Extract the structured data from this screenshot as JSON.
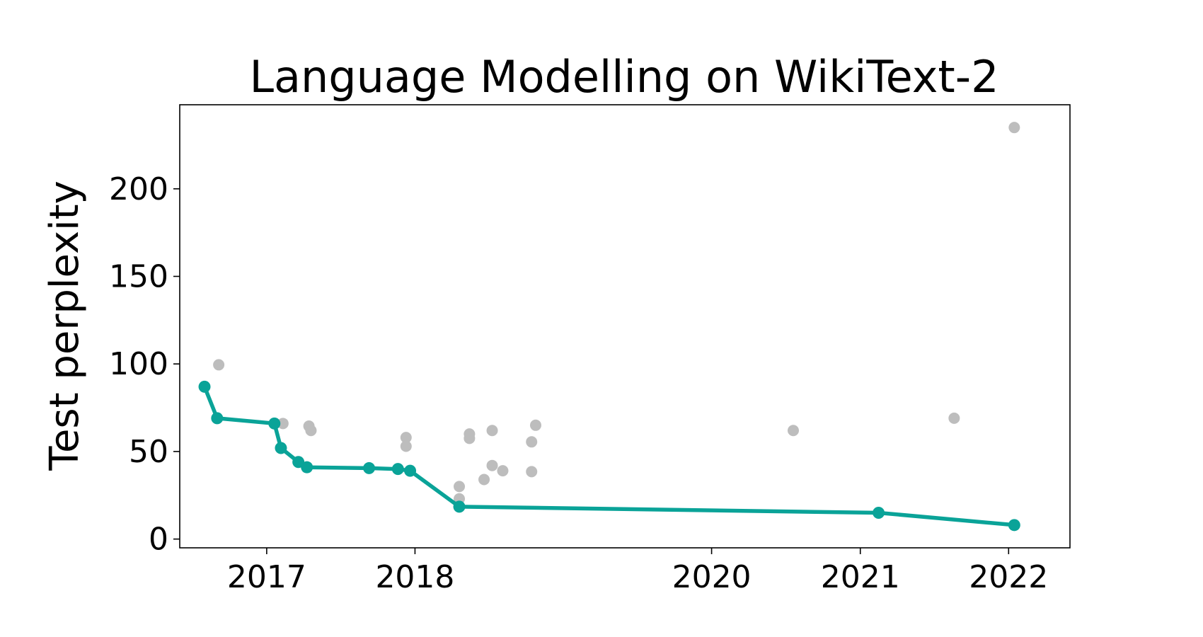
{
  "chart_data": {
    "type": "scatter",
    "title": "Language Modelling on WikiText-2",
    "xlabel": "",
    "ylabel": "Test perplexity",
    "xlim": [
      "2016-06-01",
      "2022-06-01"
    ],
    "ylim": [
      -5,
      248
    ],
    "x_scale": "time",
    "grid": false,
    "legend": "none",
    "x_ticks": [
      {
        "value": "2017-01-01",
        "label": "2017"
      },
      {
        "value": "2018-01-01",
        "label": "2018"
      },
      {
        "value": "2020-01-01",
        "label": "2020"
      },
      {
        "value": "2021-01-01",
        "label": "2021"
      },
      {
        "value": "2022-01-01",
        "label": "2022"
      }
    ],
    "y_ticks": [
      0,
      50,
      100,
      150,
      200
    ],
    "series": [
      {
        "role": "frontier",
        "style": "line-markers",
        "color": "#0aa398",
        "points": [
          {
            "x": "2016-08-01",
            "y": 87
          },
          {
            "x": "2016-09-01",
            "y": 69
          },
          {
            "x": "2017-01-20",
            "y": 66
          },
          {
            "x": "2017-02-05",
            "y": 52
          },
          {
            "x": "2017-03-20",
            "y": 44
          },
          {
            "x": "2017-04-10",
            "y": 41
          },
          {
            "x": "2017-09-10",
            "y": 40.5
          },
          {
            "x": "2017-11-20",
            "y": 40
          },
          {
            "x": "2017-12-20",
            "y": 39
          },
          {
            "x": "2018-04-20",
            "y": 18.5
          },
          {
            "x": "2021-02-15",
            "y": 15
          },
          {
            "x": "2022-01-15",
            "y": 8
          }
        ]
      },
      {
        "role": "other",
        "style": "markers",
        "color": "#bdbdbd",
        "points": [
          {
            "x": "2016-09-05",
            "y": 99.5
          },
          {
            "x": "2017-02-10",
            "y": 66
          },
          {
            "x": "2017-04-15",
            "y": 64.5
          },
          {
            "x": "2017-04-20",
            "y": 62
          },
          {
            "x": "2017-12-10",
            "y": 58
          },
          {
            "x": "2017-12-10",
            "y": 53
          },
          {
            "x": "2018-04-20",
            "y": 30
          },
          {
            "x": "2018-04-20",
            "y": 23
          },
          {
            "x": "2018-05-15",
            "y": 60
          },
          {
            "x": "2018-05-15",
            "y": 57.5
          },
          {
            "x": "2018-06-20",
            "y": 34
          },
          {
            "x": "2018-07-10",
            "y": 62
          },
          {
            "x": "2018-07-10",
            "y": 42
          },
          {
            "x": "2018-08-05",
            "y": 39
          },
          {
            "x": "2018-10-15",
            "y": 55.5
          },
          {
            "x": "2018-10-15",
            "y": 38.5
          },
          {
            "x": "2018-10-25",
            "y": 65
          },
          {
            "x": "2020-07-20",
            "y": 62
          },
          {
            "x": "2021-08-20",
            "y": 69
          },
          {
            "x": "2022-01-15",
            "y": 235
          }
        ]
      }
    ]
  }
}
